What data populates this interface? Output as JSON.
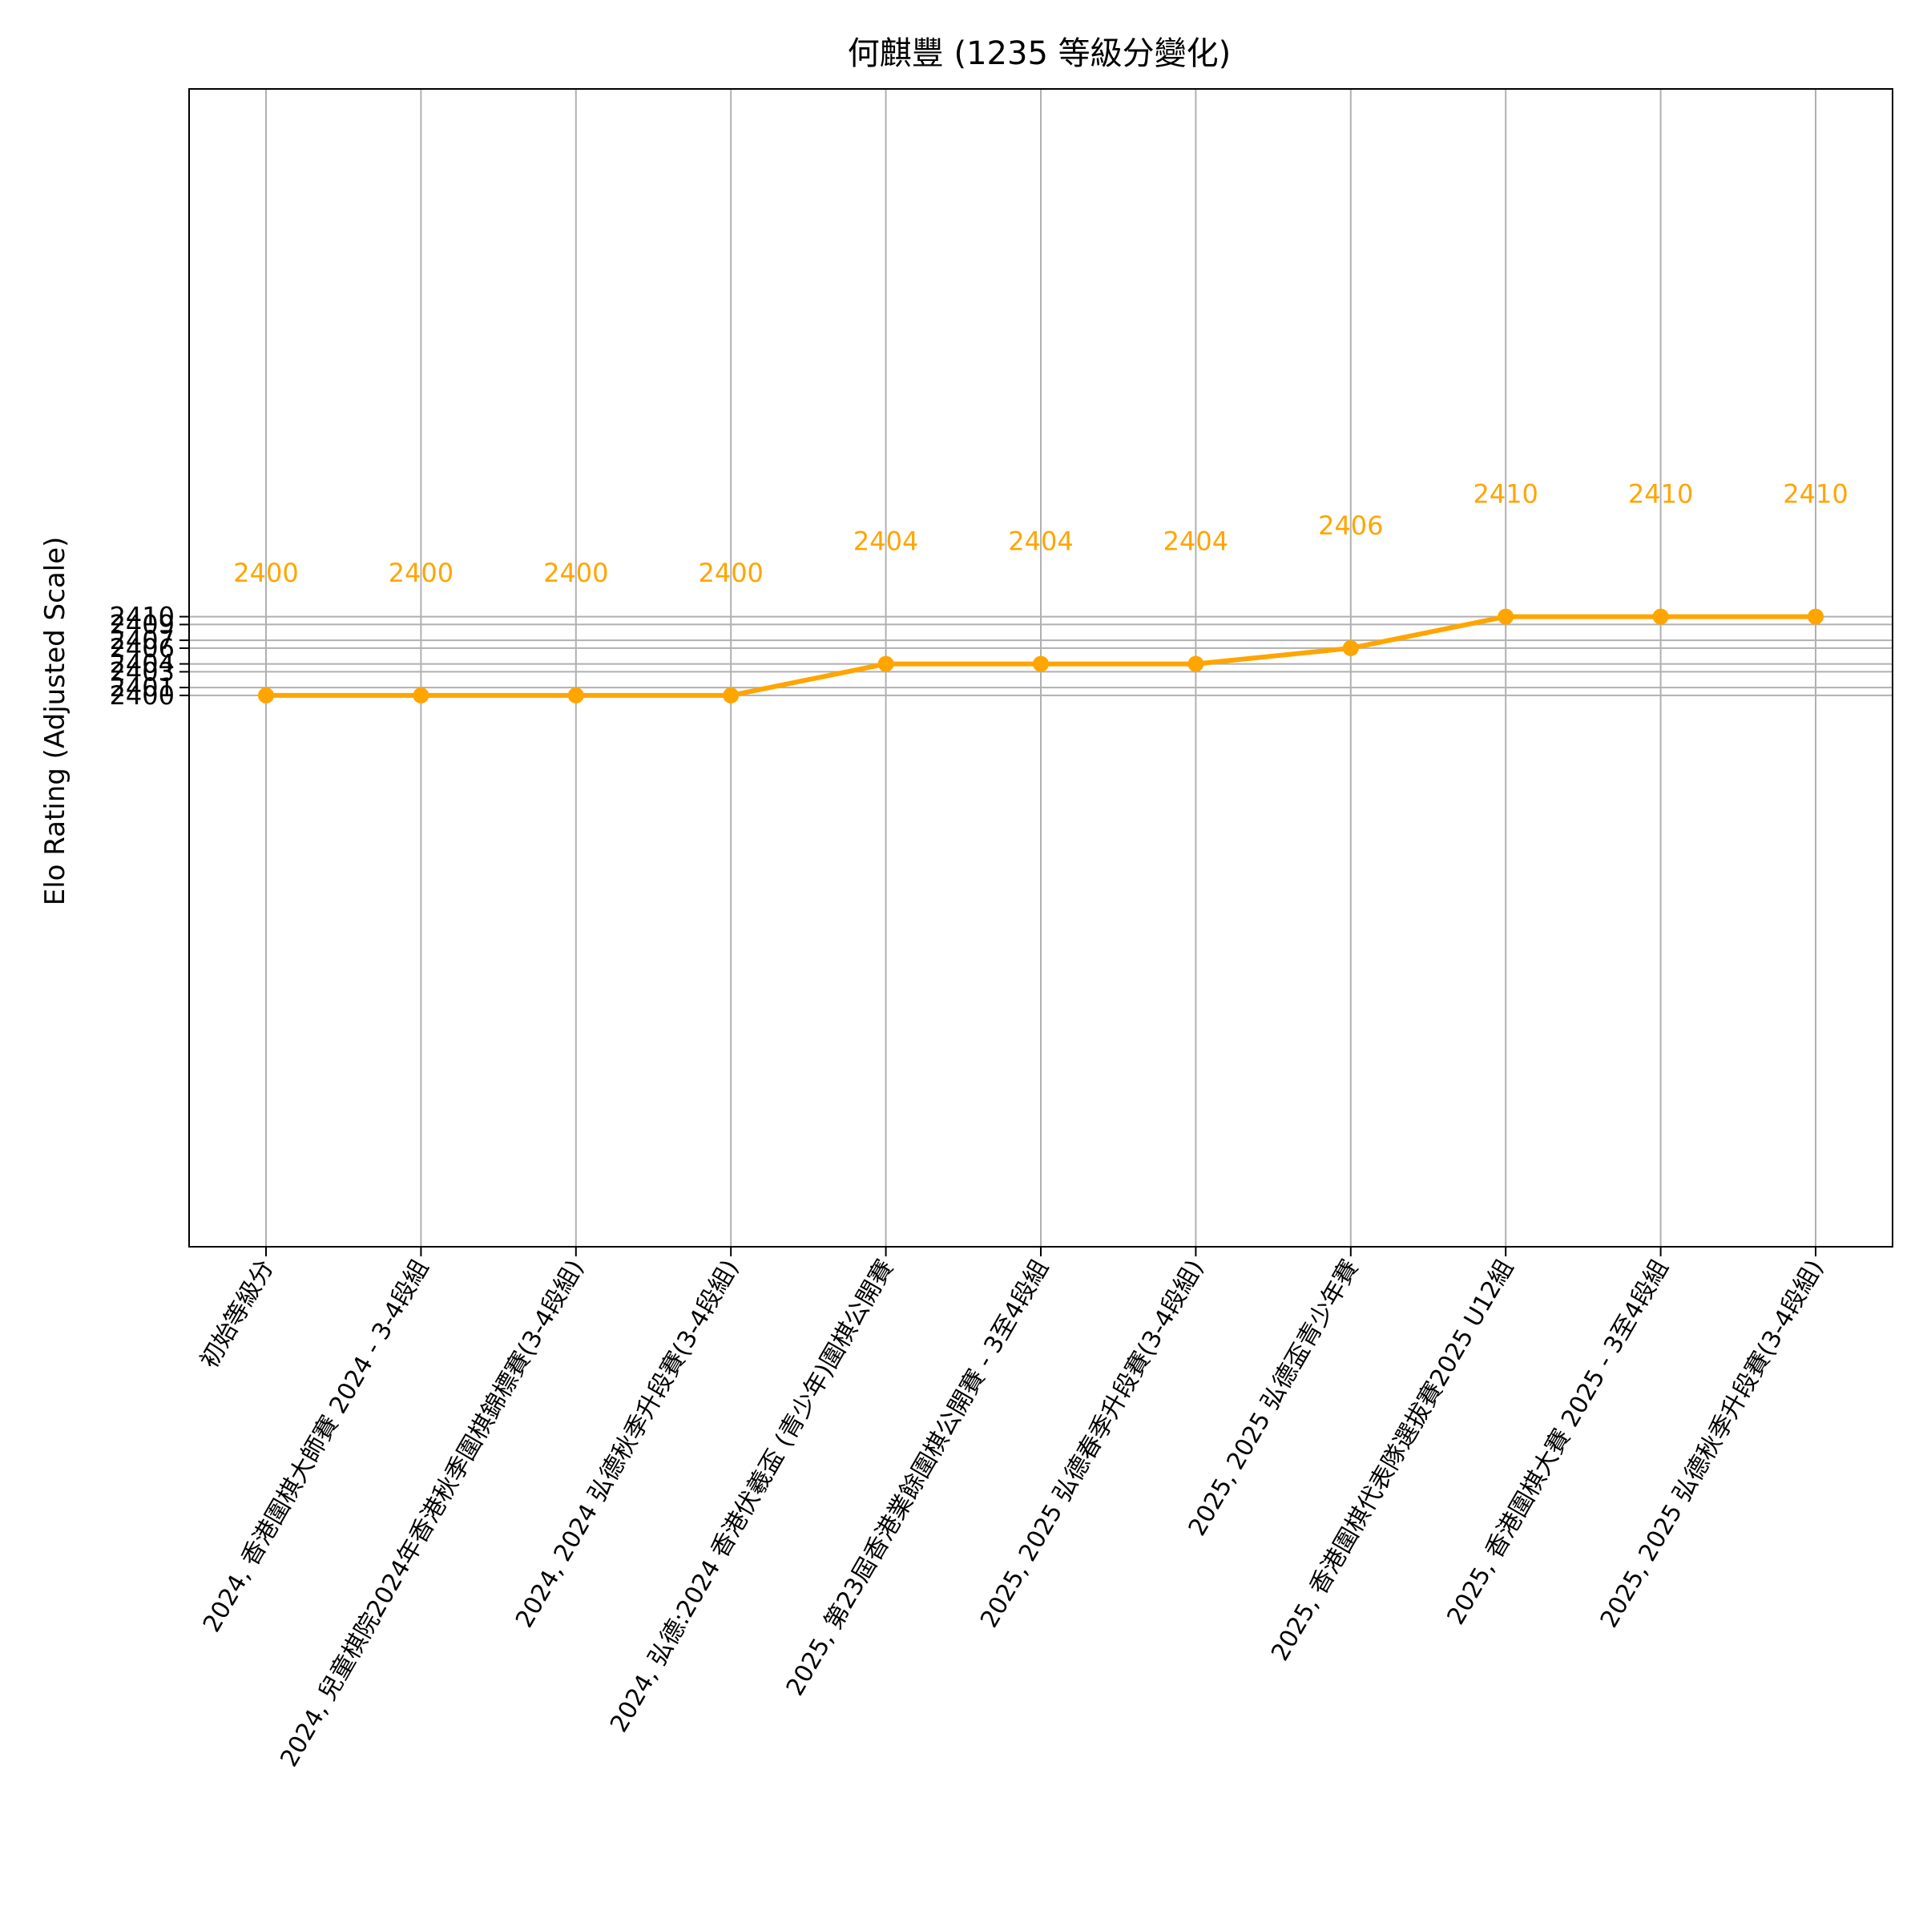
{
  "colors": {
    "line": "#ffa500",
    "grid": "#b0b0b0",
    "axes": "#000000",
    "background": "#ffffff"
  },
  "chart_data": {
    "type": "line",
    "title": "何麒豐 (1235 等級分變化)",
    "xlabel": "",
    "ylabel": "Elo Rating (Adjusted Scale)",
    "grid": true,
    "ylim": [
      2330,
      2477
    ],
    "yticks": [
      2400,
      2401,
      2403,
      2404,
      2406,
      2407,
      2409,
      2410
    ],
    "categories": [
      "初始等級分",
      "2024, 香港圍棋大師賽 2024 - 3-4段組",
      "2024, 兒童棋院2024年香港秋季圍棋錦標賽(3-4段組)",
      "2024, 2024 弘德秋季升段賽(3-4段組)",
      "2024, 弘德:2024 香港伏羲盃 (青少年)圍棋公開賽",
      "2025, 第23屆香港業餘圍棋公開賽 - 3至4段組",
      "2025, 2025 弘德春季升段賽(3-4段組)",
      "2025, 2025 弘德盃青少年賽",
      "2025, 香港圍棋代表隊選拔賽2025 U12組",
      "2025, 香港圍棋大賽 2025 - 3至4段組",
      "2025, 2025 弘德秋季升段賽(3-4段組)"
    ],
    "series": [
      {
        "values": [
          2400,
          2400,
          2400,
          2400,
          2404,
          2404,
          2404,
          2406,
          2410,
          2410,
          2410
        ],
        "labels": [
          "2400",
          "2400",
          "2400",
          "2400",
          "2404",
          "2404",
          "2404",
          "2406",
          "2410",
          "2410",
          "2410"
        ],
        "color": "#ffa500"
      }
    ]
  }
}
